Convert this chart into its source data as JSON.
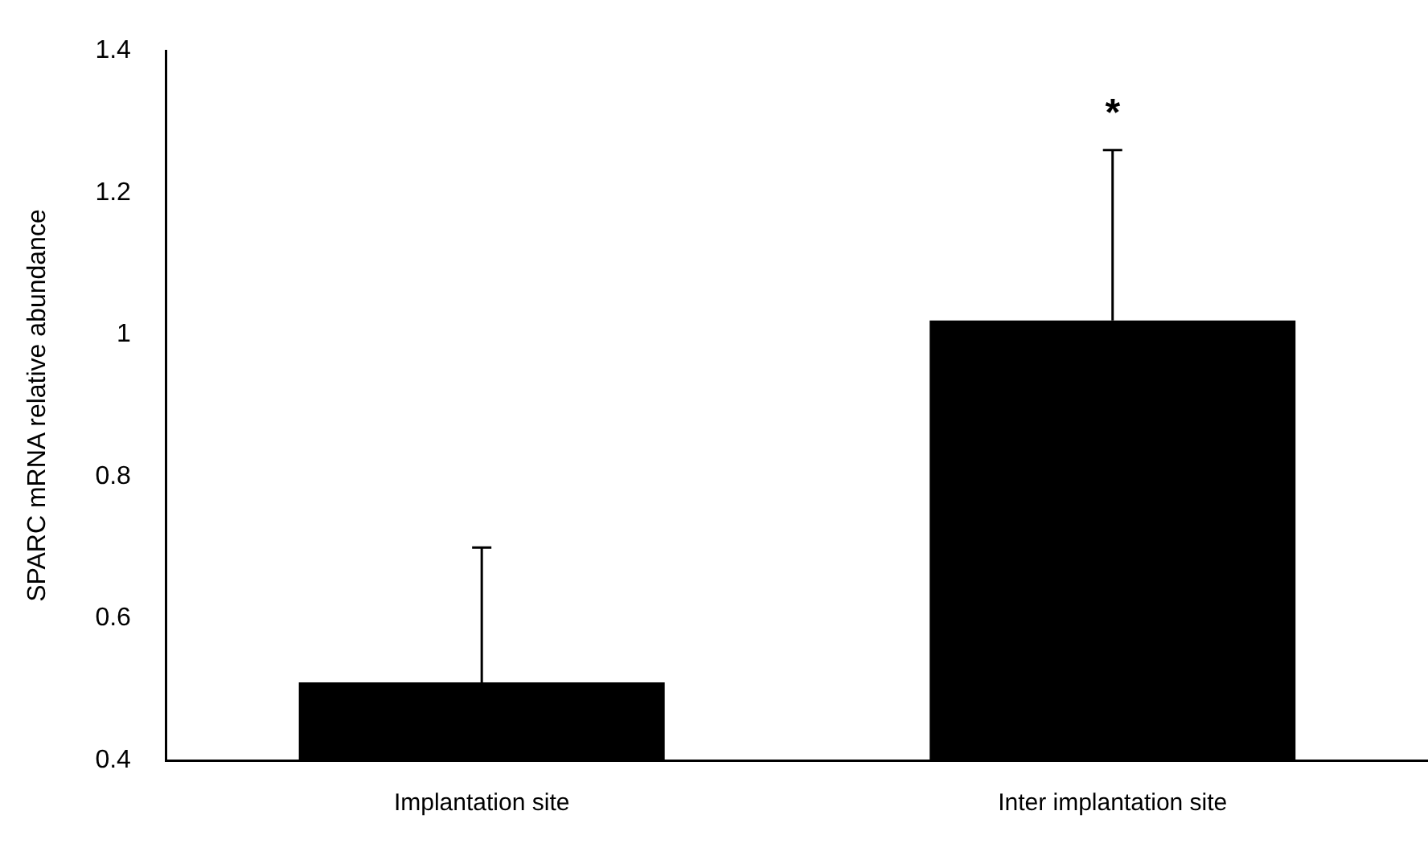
{
  "chart_data": {
    "type": "bar",
    "ylabel": "SPARC mRNA relative abundance",
    "categories": [
      "Implantation site",
      "Inter implantation site"
    ],
    "values": [
      0.51,
      1.02
    ],
    "color": "#000000",
    "errors": [
      [
        0.51,
        0.7
      ],
      [
        1.02,
        1.26
      ]
    ],
    "ylim": [
      0.4,
      1.4
    ],
    "yticks": [
      0.4,
      0.6,
      0.8,
      1,
      1.2,
      1.4
    ],
    "grid": false,
    "legend": false,
    "annotations": [
      "*"
    ]
  }
}
